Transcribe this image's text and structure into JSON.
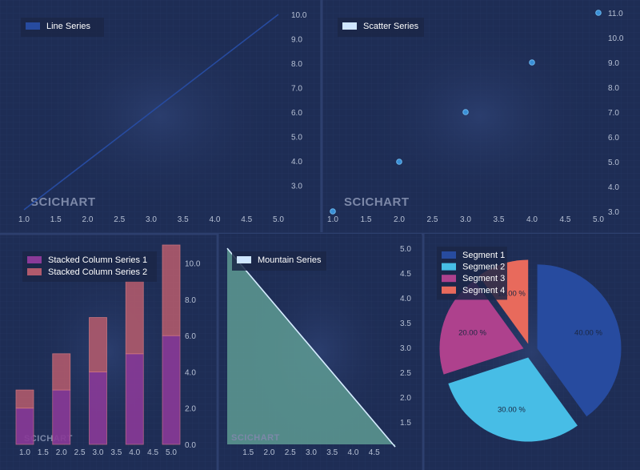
{
  "watermark": "SCICHART",
  "colors": {
    "background": "#1c2a4f",
    "panel": "#1e2d55",
    "grid": "#25365f",
    "line": "#274b9f",
    "scatter": "#3a8fd6",
    "stack1": "#8a3a98",
    "stack2": "#b05a6c",
    "mountain_fill": "#5e9b93",
    "mountain_line": "#d6ecff",
    "pie": [
      "#274b9f",
      "#47bde6",
      "#ae418d",
      "#e86a5c"
    ]
  },
  "chart_data": [
    {
      "type": "line",
      "legend": {
        "position": "top-left",
        "entries": [
          {
            "label": "Line Series",
            "color": "#274b9f"
          }
        ]
      },
      "series": [
        {
          "name": "Line Series",
          "x": [
            1,
            5
          ],
          "y": [
            2,
            10
          ]
        }
      ],
      "xlim": [
        1,
        5
      ],
      "ylim": [
        2,
        10
      ],
      "x_ticks": [
        "1.0",
        "1.5",
        "2.0",
        "2.5",
        "3.0",
        "3.5",
        "4.0",
        "4.5",
        "5.0"
      ],
      "y_ticks": [
        "3.0",
        "4.0",
        "5.0",
        "6.0",
        "7.0",
        "8.0",
        "9.0",
        "10.0"
      ],
      "y_axis_side": "right",
      "grid": true
    },
    {
      "type": "scatter",
      "legend": {
        "position": "top-left",
        "entries": [
          {
            "label": "Scatter Series",
            "color": "#cfe6ff"
          }
        ]
      },
      "series": [
        {
          "name": "Scatter Series",
          "x": [
            1,
            2,
            3,
            4,
            5
          ],
          "y": [
            3,
            5,
            7,
            9,
            11
          ]
        }
      ],
      "xlim": [
        1,
        5
      ],
      "ylim": [
        3,
        11
      ],
      "x_ticks": [
        "1.0",
        "1.5",
        "2.0",
        "2.5",
        "3.0",
        "3.5",
        "4.0",
        "4.5",
        "5.0"
      ],
      "y_ticks": [
        "3.0",
        "4.0",
        "5.0",
        "6.0",
        "7.0",
        "8.0",
        "9.0",
        "10.0",
        "11.0"
      ],
      "y_axis_side": "right",
      "grid": true
    },
    {
      "type": "bar",
      "stacked": true,
      "legend": {
        "position": "top-left",
        "entries": [
          {
            "label": "Stacked Column Series 1",
            "color": "#8a3a98"
          },
          {
            "label": "Stacked Column Series 2",
            "color": "#b05a6c"
          }
        ]
      },
      "x": [
        1,
        2,
        3,
        4,
        5
      ],
      "series": [
        {
          "name": "Stacked Column Series 1",
          "values": [
            2,
            3,
            4,
            5,
            6
          ]
        },
        {
          "name": "Stacked Column Series 2",
          "values": [
            1,
            2,
            3,
            4,
            5
          ]
        }
      ],
      "xlim": [
        0.5,
        5.5
      ],
      "ylim": [
        0,
        11
      ],
      "x_ticks": [
        "1.0",
        "1.5",
        "2.0",
        "2.5",
        "3.0",
        "3.5",
        "4.0",
        "4.5",
        "5.0"
      ],
      "y_ticks": [
        "0.0",
        "2.0",
        "4.0",
        "6.0",
        "8.0",
        "10.0"
      ],
      "y_axis_side": "right",
      "grid": true
    },
    {
      "type": "area",
      "legend": {
        "position": "top-left",
        "entries": [
          {
            "label": "Mountain Series",
            "color": "#cfe6ff"
          }
        ]
      },
      "series": [
        {
          "name": "Mountain Series",
          "x": [
            1,
            5
          ],
          "y": [
            5,
            1
          ]
        }
      ],
      "xlim": [
        1,
        5
      ],
      "ylim": [
        1.05,
        5.05
      ],
      "x_ticks": [
        "1.5",
        "2.0",
        "2.5",
        "3.0",
        "3.5",
        "4.0",
        "4.5"
      ],
      "y_ticks": [
        "1.5",
        "2.0",
        "2.5",
        "3.0",
        "3.5",
        "4.0",
        "4.5",
        "5.0"
      ],
      "y_axis_side": "right",
      "grid": true
    },
    {
      "type": "pie",
      "legend": {
        "position": "top-left",
        "entries": [
          {
            "label": "Segment 1",
            "color": "#274b9f"
          },
          {
            "label": "Segment 2",
            "color": "#47bde6"
          },
          {
            "label": "Segment 3",
            "color": "#ae418d"
          },
          {
            "label": "Segment 4",
            "color": "#e86a5c"
          }
        ]
      },
      "slices": [
        {
          "name": "Segment 1",
          "value": 40,
          "label": "40.00 %"
        },
        {
          "name": "Segment 2",
          "value": 30,
          "label": "30.00 %"
        },
        {
          "name": "Segment 3",
          "value": 20,
          "label": "20.00 %"
        },
        {
          "name": "Segment 4",
          "value": 10,
          "label": "10.00 %"
        }
      ],
      "exploded": true
    }
  ]
}
